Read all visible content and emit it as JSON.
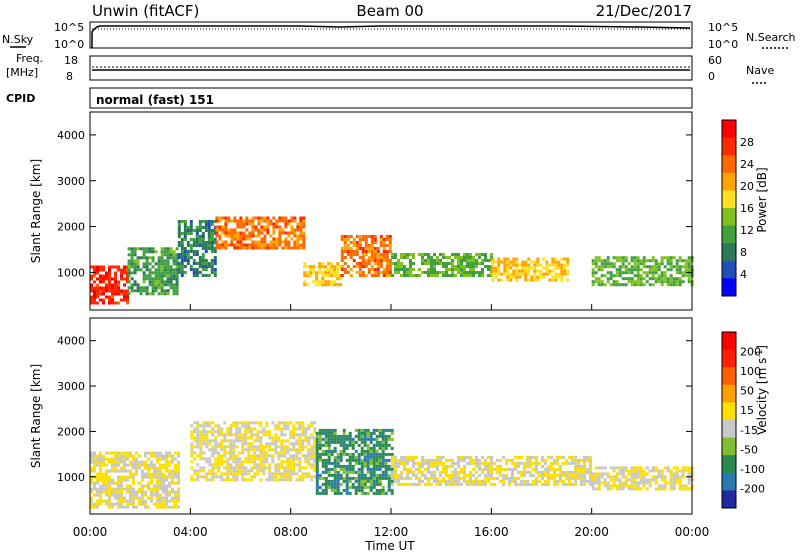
{
  "header": {
    "radar": "Unwin (fitACF)",
    "beam": "Beam 00",
    "date": "21/Dec/2017"
  },
  "sky_panel": {
    "left_label": "N.Sky",
    "right_label": "N.Search",
    "tick_top": "10^5",
    "tick_bottom": "10^0"
  },
  "freq_panel": {
    "left_label_1": "Freq.",
    "left_label_2": "[MHz]",
    "left_tick_top": "18",
    "left_tick_bottom": "8",
    "right_label": "Nave",
    "right_tick_top": "60",
    "right_tick_bottom": "0"
  },
  "cpid": {
    "label": "CPID",
    "value": "normal (fast) 151"
  },
  "time_axis": {
    "label": "Time UT",
    "ticks": [
      "00:00",
      "04:00",
      "08:00",
      "12:00",
      "16:00",
      "20:00",
      "00:00"
    ]
  },
  "range_axis": {
    "label": "Slant Range [km]",
    "ticks": [
      1000,
      2000,
      3000,
      4000
    ]
  },
  "power_scale": {
    "label": "Power [dB]",
    "ticks": [
      "4",
      "8",
      "12",
      "16",
      "20",
      "24",
      "28"
    ],
    "colors": [
      "#0000ff",
      "#2050b8",
      "#2a7a5a",
      "#40a040",
      "#80c020",
      "#ffe020",
      "#ffa500",
      "#ff6a00",
      "#ff2a00",
      "#ff0000"
    ]
  },
  "velocity_scale": {
    "label_main": "Velocity [m s",
    "label_exp": "-1",
    "label_close": "]",
    "ticks": [
      "200",
      "100",
      "50",
      "15",
      "-15",
      "-50",
      "-100",
      "-200"
    ],
    "colors": [
      "#1f2aa0",
      "#2a7ab0",
      "#2a8a50",
      "#80c030",
      "#c8c8c8",
      "#ffe000",
      "#ffa000",
      "#ff6000",
      "#ff2000",
      "#ff0000"
    ]
  },
  "chart_data": [
    {
      "type": "heatmap",
      "title": "Power [dB]",
      "xlabel": "Time UT",
      "ylabel": "Slant Range [km]",
      "xlim": [
        "00:00",
        "24:00"
      ],
      "ylim": [
        180,
        4500
      ],
      "colorbar_range": [
        0,
        30
      ],
      "regions": [
        {
          "t0": 0.0,
          "t1": 1.5,
          "r0": 300,
          "r1": 1100,
          "level": 26
        },
        {
          "t0": 1.5,
          "t1": 3.5,
          "r0": 500,
          "r1": 1500,
          "level": 10
        },
        {
          "t0": 3.5,
          "t1": 5.0,
          "r0": 900,
          "r1": 2100,
          "level": 8
        },
        {
          "t0": 5.0,
          "t1": 8.5,
          "r0": 1500,
          "r1": 2200,
          "level": 22
        },
        {
          "t0": 8.5,
          "t1": 10.0,
          "r0": 700,
          "r1": 1200,
          "level": 18
        },
        {
          "t0": 10.0,
          "t1": 12.0,
          "r0": 900,
          "r1": 1800,
          "level": 22
        },
        {
          "t0": 12.0,
          "t1": 16.0,
          "r0": 900,
          "r1": 1400,
          "level": 12
        },
        {
          "t0": 16.0,
          "t1": 19.0,
          "r0": 800,
          "r1": 1300,
          "level": 18
        },
        {
          "t0": 20.0,
          "t1": 24.0,
          "r0": 700,
          "r1": 1300,
          "level": 12
        }
      ]
    },
    {
      "type": "heatmap",
      "title": "Velocity [m s-1]",
      "xlabel": "Time UT",
      "ylabel": "Slant Range [km]",
      "xlim": [
        "00:00",
        "24:00"
      ],
      "ylim": [
        180,
        4500
      ],
      "colorbar_range": [
        -200,
        200
      ],
      "regions": [
        {
          "t0": 0.0,
          "t1": 3.5,
          "r0": 300,
          "r1": 1500,
          "level": 0
        },
        {
          "t0": 4.0,
          "t1": 9.0,
          "r0": 900,
          "r1": 2200,
          "level": 0
        },
        {
          "t0": 9.0,
          "t1": 12.0,
          "r0": 600,
          "r1": 2000,
          "level": -100
        },
        {
          "t0": 12.0,
          "t1": 20.0,
          "r0": 800,
          "r1": 1400,
          "level": 0
        },
        {
          "t0": 20.0,
          "t1": 24.0,
          "r0": 700,
          "r1": 1200,
          "level": 0
        }
      ]
    }
  ]
}
